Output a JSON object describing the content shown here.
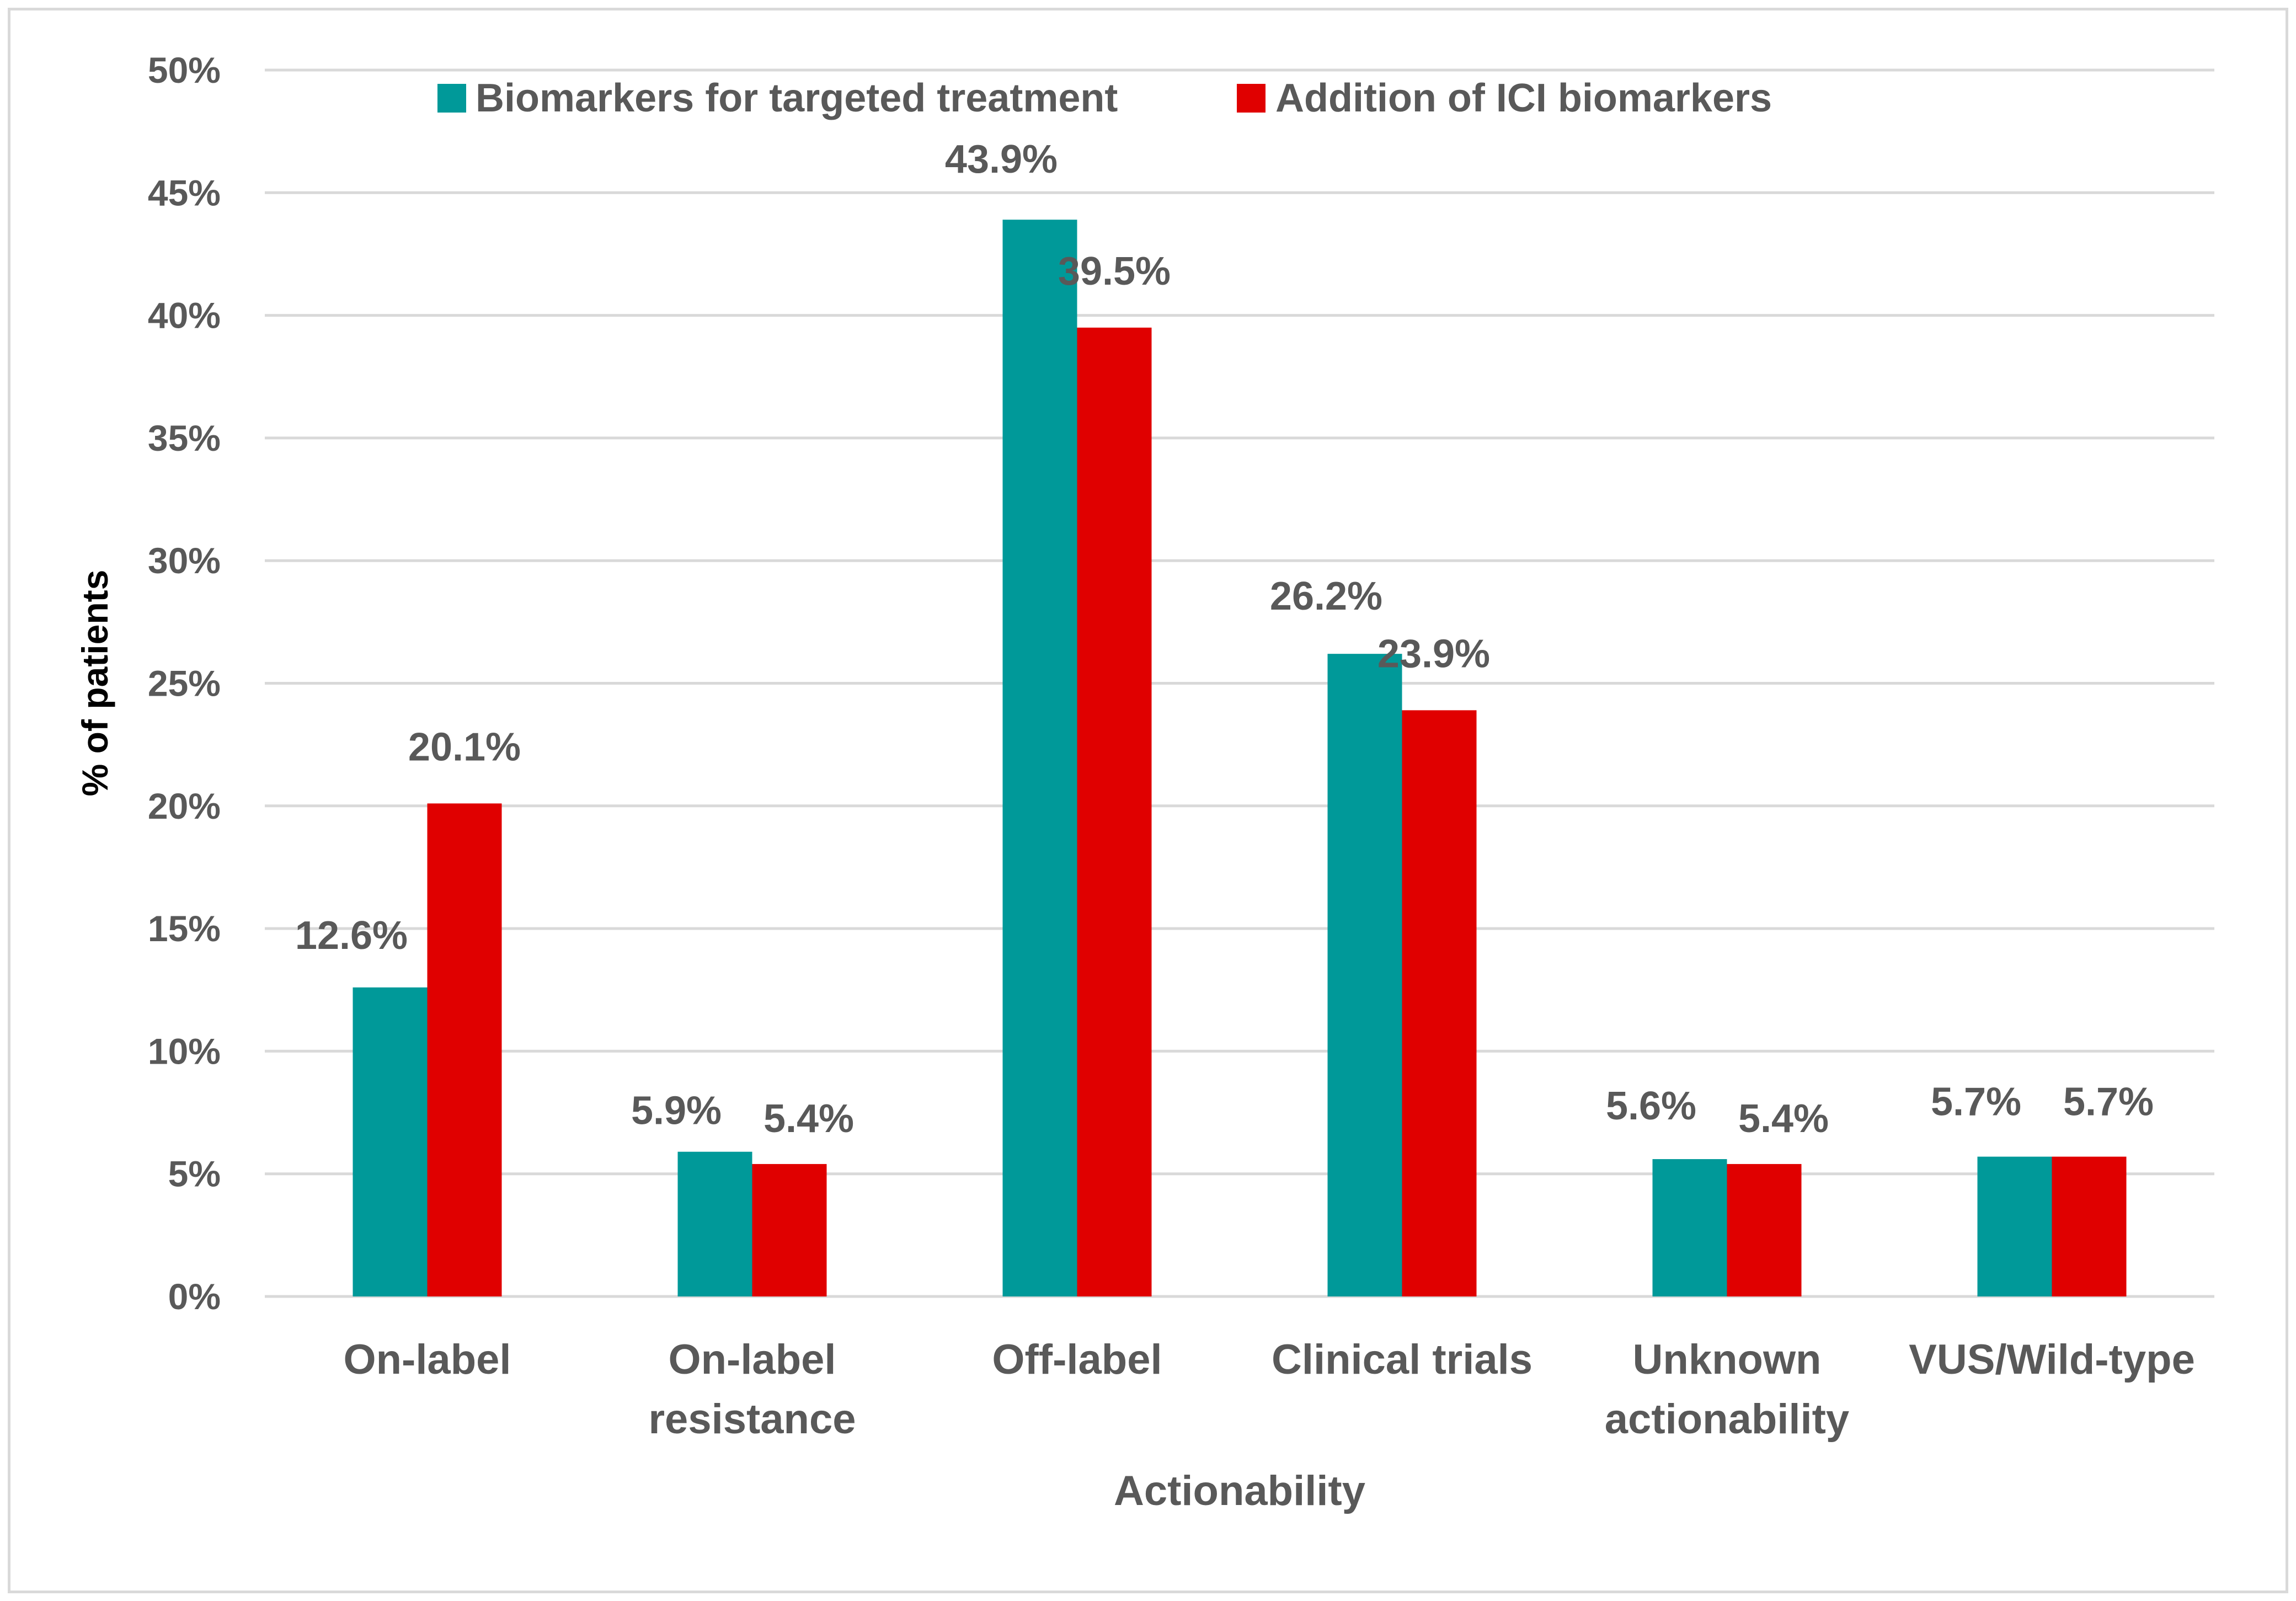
{
  "chart_data": {
    "type": "bar",
    "title": "",
    "xlabel": "Actionability",
    "ylabel": "% of patients",
    "ylim": [
      0,
      50
    ],
    "y_ticks": [
      "0%",
      "5%",
      "10%",
      "15%",
      "20%",
      "25%",
      "30%",
      "35%",
      "40%",
      "45%",
      "50%"
    ],
    "y_tick_values": [
      0,
      5,
      10,
      15,
      20,
      25,
      30,
      35,
      40,
      45,
      50
    ],
    "grid": true,
    "legend_position": "top",
    "categories": [
      [
        "On-label"
      ],
      [
        "On-label",
        "resistance"
      ],
      [
        "Off-label"
      ],
      [
        "Clinical trials"
      ],
      [
        "Unknown",
        "actionability"
      ],
      [
        "VUS/Wild-type"
      ]
    ],
    "series": [
      {
        "name": "Biomarkers for targeted treatment",
        "color": "#009999",
        "values": [
          12.6,
          5.9,
          43.9,
          26.2,
          5.6,
          5.7
        ],
        "labels": [
          "12.6%",
          "5.9%",
          "43.9%",
          "26.2%",
          "5.6%",
          "5.7%"
        ]
      },
      {
        "name": "Addition of ICI biomarkers",
        "color": "#e00000",
        "values": [
          20.1,
          5.4,
          39.5,
          23.9,
          5.4,
          5.7
        ],
        "labels": [
          "20.1%",
          "5.4%",
          "39.5%",
          "23.9%",
          "5.4%",
          "5.7%"
        ]
      }
    ],
    "colors": {
      "gridline": "#d9d9d9",
      "axis_text": "#595959",
      "frame": "#d9d9d9"
    }
  }
}
